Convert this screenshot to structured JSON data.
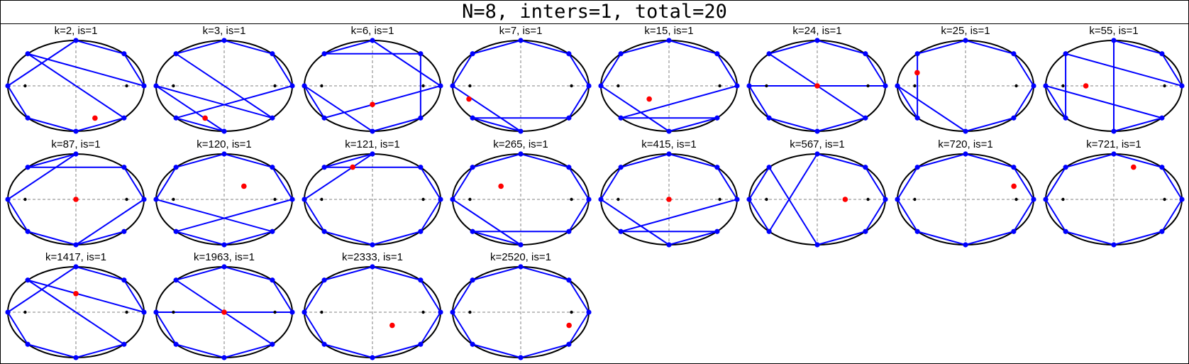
{
  "title": "N=8, inters=1, total=20",
  "colors": {
    "frame": "#000000",
    "ellipse": "#000000",
    "axes": "#808080",
    "chord": "#0000ff",
    "vertex": "#0000ff",
    "intersection": "#ff0000",
    "focus": "#000000"
  },
  "panels": [
    {
      "label": "k=2, is=1",
      "chords": [
        [
          0,
          3
        ],
        [
          3,
          7
        ],
        [
          4,
          5
        ],
        [
          5,
          6
        ],
        [
          6,
          7
        ],
        [
          0,
          1
        ],
        [
          1,
          2
        ],
        [
          2,
          4
        ]
      ],
      "inters": [
        [
          0.28,
          -0.71
        ]
      ]
    },
    {
      "label": "k=3, is=1",
      "chords": [
        [
          0,
          1
        ],
        [
          1,
          2
        ],
        [
          2,
          3
        ],
        [
          3,
          7
        ],
        [
          4,
          6
        ],
        [
          5,
          6
        ],
        [
          4,
          7
        ],
        [
          0,
          5
        ]
      ],
      "inters": [
        [
          -0.28,
          -0.71
        ]
      ]
    },
    {
      "label": "k=6, is=1",
      "chords": [
        [
          0,
          2
        ],
        [
          2,
          3
        ],
        [
          0,
          5
        ],
        [
          1,
          3
        ],
        [
          4,
          5
        ],
        [
          4,
          6
        ],
        [
          6,
          7
        ],
        [
          1,
          7
        ]
      ],
      "inters": [
        [
          0,
          -0.41
        ]
      ]
    },
    {
      "label": "k=7, is=1",
      "chords": [
        [
          0,
          1
        ],
        [
          1,
          2
        ],
        [
          2,
          3
        ],
        [
          3,
          4
        ],
        [
          4,
          6
        ],
        [
          5,
          6
        ],
        [
          5,
          7
        ],
        [
          0,
          7
        ]
      ],
      "inters": [
        [
          -0.76,
          -0.29
        ]
      ]
    },
    {
      "label": "k=15, is=1",
      "chords": [
        [
          0,
          1
        ],
        [
          1,
          2
        ],
        [
          2,
          3
        ],
        [
          3,
          4
        ],
        [
          4,
          6
        ],
        [
          0,
          5
        ],
        [
          6,
          7
        ],
        [
          5,
          7
        ]
      ],
      "inters": [
        [
          -0.29,
          -0.29
        ]
      ]
    },
    {
      "label": "k=24, is=1",
      "chords": [
        [
          0,
          1
        ],
        [
          1,
          2
        ],
        [
          2,
          3
        ],
        [
          0,
          4
        ],
        [
          4,
          5
        ],
        [
          5,
          6
        ],
        [
          3,
          7
        ],
        [
          6,
          7
        ]
      ],
      "inters": [
        [
          0,
          0
        ]
      ]
    },
    {
      "label": "k=25, is=1",
      "chords": [
        [
          0,
          1
        ],
        [
          1,
          2
        ],
        [
          2,
          3
        ],
        [
          3,
          5
        ],
        [
          4,
          5
        ],
        [
          4,
          6
        ],
        [
          6,
          7
        ],
        [
          0,
          7
        ]
      ],
      "inters": [
        [
          -0.71,
          0.29
        ]
      ]
    },
    {
      "label": "k=55, is=1",
      "chords": [
        [
          0,
          1
        ],
        [
          1,
          2
        ],
        [
          0,
          3
        ],
        [
          2,
          6
        ],
        [
          4,
          5
        ],
        [
          4,
          7
        ],
        [
          3,
          5
        ],
        [
          6,
          7
        ]
      ],
      "inters": [
        [
          -0.41,
          0
        ]
      ]
    },
    {
      "label": "k=87, is=1",
      "chords": [
        [
          0,
          1
        ],
        [
          1,
          3
        ],
        [
          2,
          3
        ],
        [
          2,
          4
        ],
        [
          4,
          5
        ],
        [
          5,
          6
        ],
        [
          0,
          6
        ],
        [
          6,
          7
        ]
      ],
      "inters": [
        [
          0,
          0
        ]
      ]
    },
    {
      "label": "k=120, is=1",
      "chords": [
        [
          0,
          1
        ],
        [
          1,
          2
        ],
        [
          2,
          3
        ],
        [
          3,
          4
        ],
        [
          0,
          5
        ],
        [
          5,
          6
        ],
        [
          4,
          7
        ],
        [
          6,
          7
        ]
      ],
      "inters": [
        [
          0.29,
          0.29
        ]
      ]
    },
    {
      "label": "k=121, is=1",
      "chords": [
        [
          0,
          1
        ],
        [
          1,
          3
        ],
        [
          2,
          3
        ],
        [
          2,
          4
        ],
        [
          4,
          5
        ],
        [
          5,
          6
        ],
        [
          6,
          7
        ],
        [
          0,
          7
        ]
      ],
      "inters": [
        [
          -0.29,
          0.71
        ]
      ]
    },
    {
      "label": "k=265, is=1",
      "chords": [
        [
          0,
          1
        ],
        [
          1,
          2
        ],
        [
          2,
          3
        ],
        [
          3,
          4
        ],
        [
          4,
          6
        ],
        [
          5,
          6
        ],
        [
          5,
          7
        ],
        [
          0,
          7
        ]
      ],
      "inters": [
        [
          -0.29,
          0.29
        ]
      ]
    },
    {
      "label": "k=415, is=1",
      "chords": [
        [
          0,
          1
        ],
        [
          1,
          2
        ],
        [
          2,
          3
        ],
        [
          3,
          4
        ],
        [
          4,
          6
        ],
        [
          0,
          5
        ],
        [
          6,
          7
        ],
        [
          5,
          7
        ]
      ],
      "inters": [
        [
          0,
          0
        ]
      ]
    },
    {
      "label": "k=567, is=1",
      "chords": [
        [
          0,
          1
        ],
        [
          1,
          2
        ],
        [
          2,
          5
        ],
        [
          3,
          4
        ],
        [
          3,
          6
        ],
        [
          4,
          5
        ],
        [
          6,
          7
        ],
        [
          0,
          7
        ]
      ],
      "inters": [
        [
          0.41,
          0
        ]
      ]
    },
    {
      "label": "k=720, is=1",
      "chords": [
        [
          0,
          1
        ],
        [
          1,
          2
        ],
        [
          2,
          3
        ],
        [
          3,
          4
        ],
        [
          4,
          5
        ],
        [
          5,
          6
        ],
        [
          6,
          7
        ],
        [
          0,
          7
        ]
      ],
      "inters": [
        [
          0.71,
          0.29
        ]
      ]
    },
    {
      "label": "k=721, is=1",
      "chords": [
        [
          0,
          1
        ],
        [
          1,
          2
        ],
        [
          2,
          3
        ],
        [
          3,
          4
        ],
        [
          4,
          5
        ],
        [
          5,
          6
        ],
        [
          0,
          7
        ],
        [
          6,
          7
        ]
      ],
      "inters": [
        [
          0.29,
          0.71
        ]
      ]
    },
    {
      "label": "k=1417, is=1",
      "chords": [
        [
          0,
          1
        ],
        [
          1,
          2
        ],
        [
          0,
          3
        ],
        [
          2,
          4
        ],
        [
          4,
          5
        ],
        [
          5,
          6
        ],
        [
          6,
          7
        ],
        [
          3,
          7
        ]
      ],
      "inters": [
        [
          0,
          0.41
        ]
      ]
    },
    {
      "label": "k=1963, is=1",
      "chords": [
        [
          0,
          1
        ],
        [
          1,
          2
        ],
        [
          2,
          3
        ],
        [
          0,
          4
        ],
        [
          4,
          5
        ],
        [
          5,
          6
        ],
        [
          6,
          7
        ],
        [
          3,
          7
        ]
      ],
      "inters": [
        [
          0,
          0
        ]
      ]
    },
    {
      "label": "k=2333, is=1",
      "chords": [
        [
          0,
          1
        ],
        [
          1,
          2
        ],
        [
          2,
          3
        ],
        [
          3,
          4
        ],
        [
          4,
          5
        ],
        [
          5,
          6
        ],
        [
          6,
          7
        ],
        [
          0,
          7
        ]
      ],
      "inters": [
        [
          0.29,
          -0.29
        ]
      ]
    },
    {
      "label": "k=2520, is=1",
      "chords": [
        [
          0,
          1
        ],
        [
          1,
          2
        ],
        [
          2,
          3
        ],
        [
          3,
          4
        ],
        [
          4,
          5
        ],
        [
          5,
          6
        ],
        [
          6,
          7
        ],
        [
          0,
          7
        ]
      ],
      "inters": [
        [
          0.71,
          -0.29
        ]
      ]
    }
  ]
}
